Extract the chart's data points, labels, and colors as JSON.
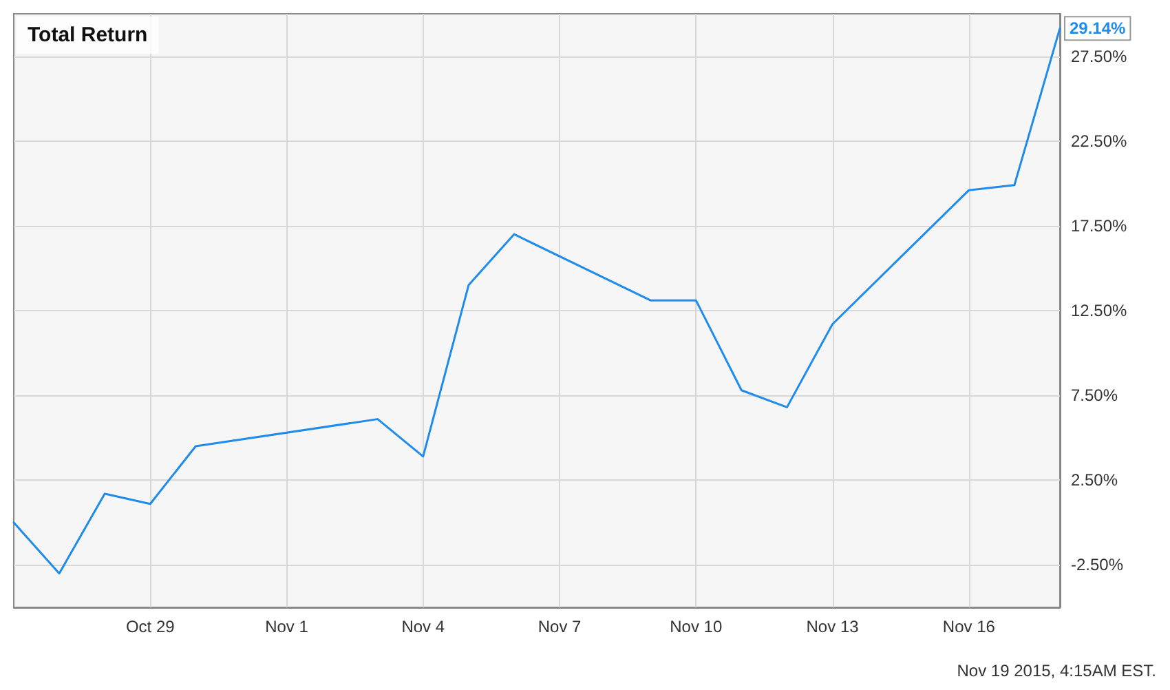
{
  "chart_data": {
    "type": "line",
    "title": "Total Return",
    "x": [
      "2015-10-26",
      "2015-10-27",
      "2015-10-28",
      "2015-10-29",
      "2015-10-30",
      "2015-11-03",
      "2015-11-04",
      "2015-11-05",
      "2015-11-06",
      "2015-11-09",
      "2015-11-10",
      "2015-11-11",
      "2015-11-12",
      "2015-11-13",
      "2015-11-16",
      "2015-11-17",
      "2015-11-18"
    ],
    "series": [
      {
        "color": "#1f8ceb",
        "values": [
          0.0,
          -3.0,
          1.7,
          1.1,
          4.5,
          6.1,
          3.9,
          14.0,
          17.0,
          13.1,
          13.1,
          7.8,
          6.8,
          11.7,
          19.6,
          19.9,
          29.14
        ],
        "value_labels": [
          null,
          null,
          null,
          null,
          null,
          null,
          null,
          null,
          null,
          null,
          null,
          null,
          null,
          null,
          null,
          null,
          "29.14%"
        ]
      }
    ],
    "xlim": [
      "2015-10-26",
      "2015-11-18"
    ],
    "xticks": [
      {
        "value": "2015-10-29",
        "label": "Oct 29"
      },
      {
        "value": "2015-11-01",
        "label": "Nov 1"
      },
      {
        "value": "2015-11-04",
        "label": "Nov 4"
      },
      {
        "value": "2015-11-07",
        "label": "Nov 7"
      },
      {
        "value": "2015-11-10",
        "label": "Nov 10"
      },
      {
        "value": "2015-11-13",
        "label": "Nov 13"
      },
      {
        "value": "2015-11-16",
        "label": "Nov 16"
      }
    ],
    "ylim": [
      -5,
      30
    ],
    "yticks": [
      {
        "value": -2.5,
        "label": "-2.50%"
      },
      {
        "value": 2.5,
        "label": "2.50%"
      },
      {
        "value": 7.5,
        "label": "7.50%"
      },
      {
        "value": 12.5,
        "label": "12.50%"
      },
      {
        "value": 17.5,
        "label": "17.50%"
      },
      {
        "value": 22.5,
        "label": "22.50%"
      },
      {
        "value": 27.5,
        "label": "27.50%"
      }
    ],
    "grid": true,
    "marker": "none",
    "line_style": "solid",
    "annotations": [
      "Nov 19 2015, 4:15AM EST."
    ]
  }
}
